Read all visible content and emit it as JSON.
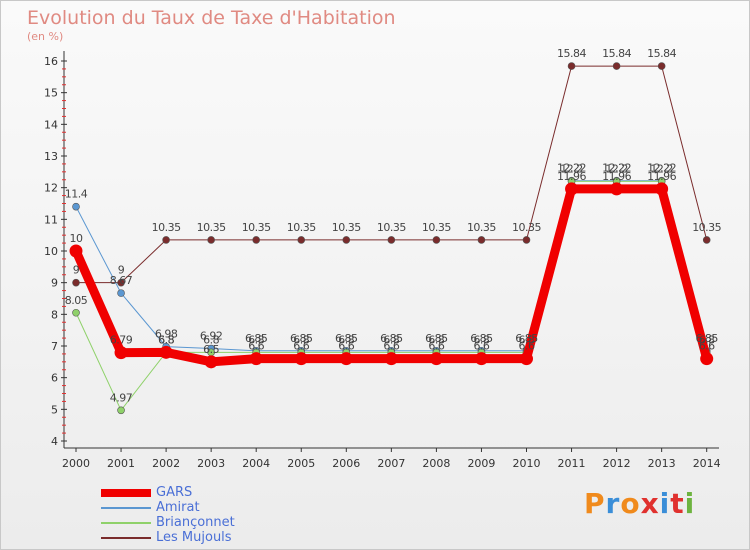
{
  "title": "Evolution du Taux de Taxe d'Habitation",
  "subtitle": "(en %)",
  "logo": {
    "text": "Proxiti",
    "letter_colors": [
      "#f08a1c",
      "#3a8ed8",
      "#f08a1c",
      "#e0312e",
      "#3a8ed8",
      "#e0312e",
      "#6db33f"
    ]
  },
  "chart_data": {
    "type": "line",
    "x": [
      "2000",
      "2001",
      "2002",
      "2003",
      "2004",
      "2005",
      "2006",
      "2007",
      "2008",
      "2009",
      "2010",
      "2011",
      "2012",
      "2013",
      "2014"
    ],
    "ylim": [
      4,
      16
    ],
    "yticks": [
      "4",
      "5",
      "6",
      "7",
      "8",
      "9",
      "10",
      "11",
      "12",
      "13",
      "14",
      "15",
      "16"
    ],
    "grid": false,
    "legend_position": "bottom-left",
    "series": [
      {
        "name": "GARS",
        "color": "#f00000",
        "width": 9,
        "values": [
          10,
          6.79,
          6.8,
          6.5,
          6.6,
          6.6,
          6.6,
          6.6,
          6.6,
          6.6,
          6.6,
          11.96,
          11.96,
          11.96,
          6.6
        ],
        "labels": [
          "10",
          "6.79",
          "6.8",
          "6.5",
          "6.6",
          "6.6",
          "6.6",
          "6.6",
          "6.6",
          "6.6",
          "6.6",
          "11.96",
          "11.96",
          "11.96",
          "6.6"
        ]
      },
      {
        "name": "Amirat",
        "color": "#5b97d1",
        "width": 1,
        "values": [
          11.4,
          8.67,
          6.98,
          6.92,
          6.85,
          6.85,
          6.85,
          6.85,
          6.85,
          6.85,
          6.85,
          12.22,
          12.22,
          12.22,
          6.85
        ],
        "labels": [
          "11.4",
          "8.67",
          "6.98",
          "6.92",
          "6.85",
          "6.85",
          "6.85",
          "6.85",
          "6.85",
          "6.85",
          "6.85",
          "12.22",
          "12.22",
          "12.22",
          "6.85"
        ]
      },
      {
        "name": "Briançonnet",
        "color": "#8fd16a",
        "width": 1,
        "values": [
          8.05,
          4.97,
          6.8,
          6.8,
          6.8,
          6.8,
          6.8,
          6.8,
          6.8,
          6.8,
          6.8,
          12.2,
          12.2,
          12.2,
          6.8
        ],
        "labels": [
          "8.05",
          "4.97",
          "6.8",
          "6.8",
          "6.8",
          "6.8",
          "6.8",
          "6.8",
          "6.8",
          "6.8",
          "6.8",
          "12.2",
          "12.2",
          "12.2",
          "6.8"
        ]
      },
      {
        "name": "Les Mujouls",
        "color": "#7a2c2c",
        "width": 1,
        "values": [
          9,
          9,
          10.35,
          10.35,
          10.35,
          10.35,
          10.35,
          10.35,
          10.35,
          10.35,
          10.35,
          15.84,
          15.84,
          15.84,
          10.35
        ],
        "labels": [
          "9",
          "9",
          "10.35",
          "10.35",
          "10.35",
          "10.35",
          "10.35",
          "10.35",
          "10.35",
          "10.35",
          "10.35",
          "15.84",
          "15.84",
          "15.84",
          "10.35"
        ]
      }
    ]
  }
}
